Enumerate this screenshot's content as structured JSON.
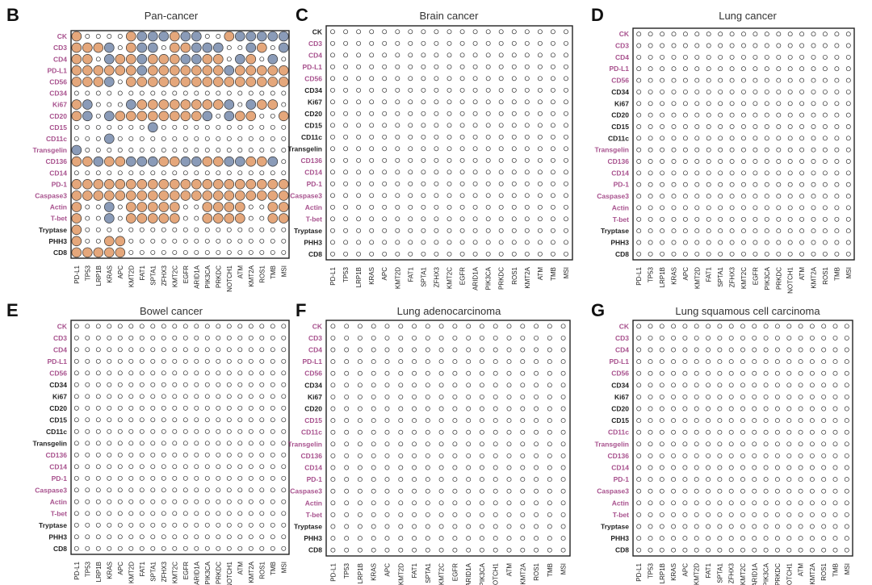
{
  "figure": {
    "legend_colors": {
      "positive": "#e5a77b",
      "negative": "#8a9bb8",
      "none": "#ffffff"
    },
    "row_label_colors": {
      "pink": "#a8528e",
      "black": "#222222"
    }
  },
  "chart_data": [
    {
      "type": "dot-matrix",
      "panel_letter": "B",
      "title": "Pan-cancer",
      "rows": [
        "CK",
        "CD3",
        "CD4",
        "PD-L1",
        "CD56",
        "CD34",
        "Ki67",
        "CD20",
        "CD15",
        "CD11c",
        "Transgelin",
        "CD136",
        "CD14",
        "PD-1",
        "Caspase3",
        "Actin",
        "T-bet",
        "Tryptase",
        "PHH3",
        "CD8"
      ],
      "row_label_style": [
        "pink",
        "pink",
        "pink",
        "pink",
        "pink",
        "pink",
        "pink",
        "pink",
        "pink",
        "pink",
        "pink",
        "pink",
        "pink",
        "pink",
        "pink",
        "pink",
        "pink",
        "black",
        "black",
        "black"
      ],
      "columns": [
        "PD-L1",
        "TP53",
        "LRP1B",
        "KRAS",
        "APC",
        "KMT2D",
        "FAT1",
        "SPTA1",
        "ZFHX3",
        "KMT2C",
        "EGFR",
        "ARID1A",
        "PIK3CA",
        "PRKDC",
        "NOTCH1",
        "ATM",
        "KMT2A",
        "ROS1",
        "TMB",
        "MSI"
      ],
      "cells": [
        "BOOOOBCACBCAOOBCACACOOOOOOOOOOOOCCOO",
        "BBBAOBCAOBBCAAOOCBOACOOCBBOBOOCAOOBCB",
        "BBOCBBCBBBCCBBOCBOCOOCCBBBOOCAOOBB",
        "BBBBBBCBBBBBBBCBBBBBBBOBBBBOOBCBBB",
        "BBBAOBBBBBBBBBBBBBBBBBBBOOOOBBBBBBB",
        "OOOOOOOOOOOOOOOOOOOO",
        "BAOOOCBBBBBBBBAOCBBOOOBBB",
        "BAOCBBBBBBBBAOCBBOOBBB",
        "OOOOOOOCOOOOOOOOOOOO",
        "OOOAOOOOOOOOOOOOOOOO",
        "COOOOOOOOOOOOOOOOOOO",
        "BBCBBCCCBBCCBBCCBBCOCCCCCC",
        "OOOOOOOOOOOOOOOOOOOO",
        "BBBBBBBBBBBBBBBBBBBBOOBBBB",
        "BBBBBBBBBBBBBBBBBBBBOOBBBB",
        "BOOAOBBBBBOOBBBBOOBBB",
        "BOOAOBBBBBOOBBBBOOBBB",
        "BOOOOOOOOOOOOOOOOOOO",
        "BOOBBOOOOOOOOOOOOOOO",
        "BBBBBOOOOOOOOOOOOOOO"
      ]
    },
    {
      "type": "dot-matrix",
      "panel_letter": "C",
      "title": "Brain cancer",
      "rows": [
        "CK",
        "CD3",
        "CD4",
        "PD-L1",
        "CD56",
        "CD34",
        "Ki67",
        "CD20",
        "CD15",
        "CD11c",
        "Transgelin",
        "CD136",
        "CD14",
        "PD-1",
        "Caspase3",
        "Actin",
        "T-bet",
        "Tryptase",
        "PHH3",
        "CD8"
      ],
      "row_label_style": [
        "black",
        "pink",
        "pink",
        "pink",
        "pink",
        "black",
        "black",
        "black",
        "black",
        "black",
        "black",
        "pink",
        "pink",
        "pink",
        "pink",
        "pink",
        "pink",
        "black",
        "black",
        "black"
      ],
      "columns": [
        "PD-L1",
        "TP53",
        "LRP1B",
        "KRAS",
        "APC",
        "KMT2D",
        "FAT1",
        "SPTA1",
        "ZFHX3",
        "KMT2C",
        "EGFR",
        "ARID1A",
        "PIK3CA",
        "PRKDC",
        "ROS1",
        "KMT2A",
        "ATM",
        "TMB",
        "MSI"
      ]
    },
    {
      "type": "dot-matrix",
      "panel_letter": "D",
      "title": "Lung cancer",
      "rows": [
        "CK",
        "CD3",
        "CD4",
        "PD-L1",
        "CD56",
        "CD34",
        "Ki67",
        "CD20",
        "CD15",
        "CD11c",
        "Transgelin",
        "CD136",
        "CD14",
        "PD-1",
        "Caspase3",
        "Actin",
        "T-bet",
        "Tryptase",
        "PHH3",
        "CD8"
      ],
      "row_label_style": [
        "pink",
        "pink",
        "pink",
        "pink",
        "pink",
        "black",
        "black",
        "black",
        "black",
        "black",
        "pink",
        "pink",
        "pink",
        "pink",
        "pink",
        "pink",
        "pink",
        "black",
        "black",
        "black"
      ],
      "columns": [
        "PD-L1",
        "TP53",
        "LRP1B",
        "KRAS",
        "APC",
        "KMT2D",
        "FAT1",
        "SPTA1",
        "ZFHX3",
        "KMT2C",
        "EGFR",
        "PIK3CA",
        "PRKDC",
        "NOTCH1",
        "ATM",
        "KMT2A",
        "ROS1",
        "TMB",
        "MSI"
      ]
    },
    {
      "type": "dot-matrix",
      "panel_letter": "E",
      "title": "Bowel cancer",
      "rows": [
        "CK",
        "CD3",
        "CD4",
        "PD-L1",
        "CD56",
        "CD34",
        "Ki67",
        "CD20",
        "CD15",
        "CD11c",
        "Transgelin",
        "CD136",
        "CD14",
        "PD-1",
        "Caspase3",
        "Actin",
        "T-bet",
        "Tryptase",
        "PHH3",
        "CD8"
      ],
      "row_label_style": [
        "pink",
        "pink",
        "pink",
        "pink",
        "pink",
        "black",
        "black",
        "black",
        "black",
        "black",
        "black",
        "pink",
        "pink",
        "pink",
        "pink",
        "pink",
        "pink",
        "black",
        "black",
        "black"
      ],
      "columns": [
        "PD-L1",
        "TP53",
        "LRP1B",
        "KRAS",
        "APC",
        "KMT2D",
        "FAT1",
        "SPTA1",
        "ZFHX3",
        "KMT2C",
        "EGFR",
        "ARID1A",
        "PIK3CA",
        "PRKDC",
        "NOTCH1",
        "ATM",
        "KMT2A",
        "ROS1",
        "TMB",
        "MSI"
      ]
    },
    {
      "type": "dot-matrix",
      "panel_letter": "F",
      "title": "Lung adenocarcinoma",
      "rows": [
        "CK",
        "CD3",
        "CD4",
        "PD-L1",
        "CD56",
        "CD34",
        "Ki67",
        "CD20",
        "CD15",
        "CD11c",
        "Transgelin",
        "CD136",
        "CD14",
        "PD-1",
        "Caspase3",
        "Actin",
        "T-bet",
        "Tryptase",
        "PHH3",
        "CD8"
      ],
      "row_label_style": [
        "pink",
        "pink",
        "pink",
        "pink",
        "pink",
        "black",
        "black",
        "black",
        "pink",
        "pink",
        "pink",
        "pink",
        "pink",
        "pink",
        "pink",
        "pink",
        "pink",
        "black",
        "black",
        "black"
      ],
      "columns": [
        "PD-L1",
        "TP53",
        "LRP1B",
        "KRAS",
        "APC",
        "KMT2D",
        "FAT1",
        "SPTA1",
        "KMT2C",
        "EGFR",
        "ARID1A",
        "PIK3CA",
        "NOTCH1",
        "ATM",
        "KMT2A",
        "ROS1",
        "TMB",
        "MSI"
      ]
    },
    {
      "type": "dot-matrix",
      "panel_letter": "G",
      "title": "Lung squamous cell carcinoma",
      "rows": [
        "CK",
        "CD3",
        "CD4",
        "PD-L1",
        "CD56",
        "CD34",
        "Ki67",
        "CD20",
        "CD15",
        "CD11c",
        "Transgelin",
        "CD136",
        "CD14",
        "PD-1",
        "Caspase3",
        "Actin",
        "T-bet",
        "Tryptase",
        "PHH3",
        "CD8"
      ],
      "row_label_style": [
        "pink",
        "pink",
        "pink",
        "pink",
        "pink",
        "black",
        "black",
        "black",
        "black",
        "pink",
        "pink",
        "pink",
        "pink",
        "pink",
        "pink",
        "pink",
        "pink",
        "black",
        "black",
        "black"
      ],
      "columns": [
        "PD-L1",
        "TP53",
        "LRP1B",
        "KRAS",
        "APC",
        "KMT2D",
        "FAT1",
        "SPTA1",
        "ZFHX3",
        "KMT2C",
        "ARID1A",
        "PIK3CA",
        "PRKDC",
        "NOTCH1",
        "ATM",
        "KMT2A",
        "ROS1",
        "TMB",
        "MSI"
      ]
    }
  ]
}
